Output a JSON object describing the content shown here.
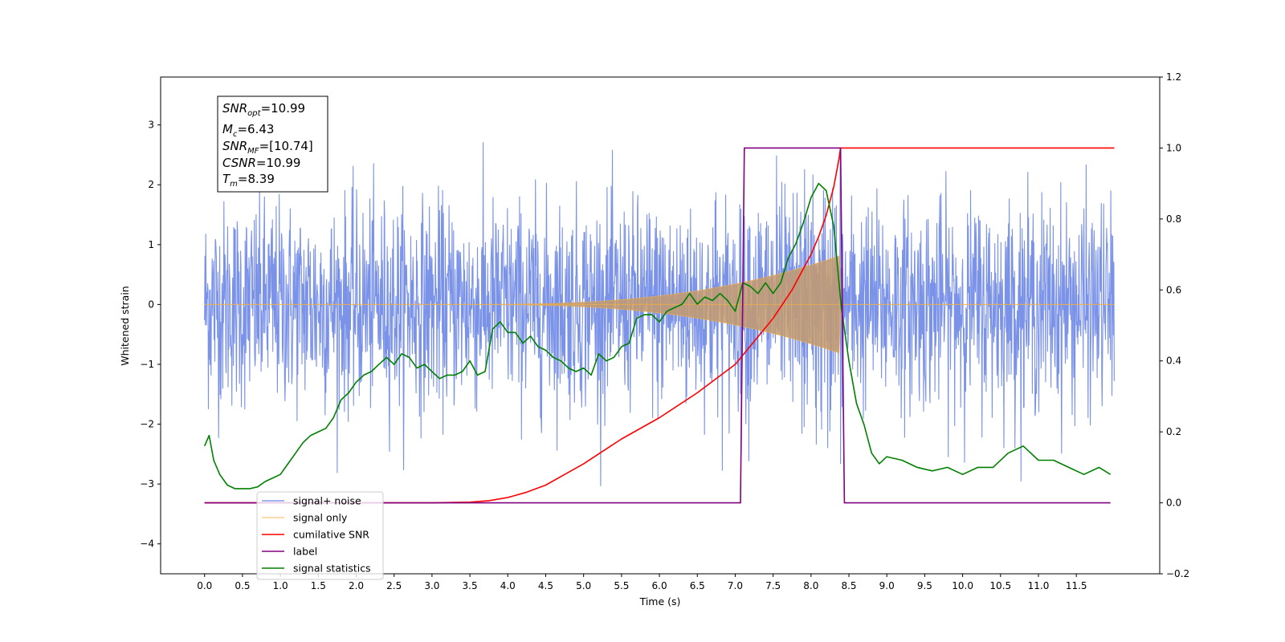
{
  "chart_data": {
    "type": "line",
    "xlabel": "Time (s)",
    "ylabel": "Whitened strain",
    "y2label": "",
    "xlim": [
      -0.58,
      12.6
    ],
    "ylim": [
      -4.5,
      3.8
    ],
    "y2lim": [
      -0.2,
      1.2
    ],
    "x_ticks": [
      "0.0",
      "0.5",
      "1.0",
      "1.5",
      "2.0",
      "2.5",
      "3.0",
      "3.5",
      "4.0",
      "4.5",
      "5.0",
      "5.5",
      "6.0",
      "6.5",
      "7.0",
      "7.5",
      "8.0",
      "8.5",
      "9.0",
      "9.5",
      "10.0",
      "10.5",
      "11.0",
      "11.5"
    ],
    "y_ticks": [
      "3",
      "2",
      "1",
      "0",
      "−1",
      "−2",
      "−3",
      "−4"
    ],
    "y2_ticks": [
      "1.2",
      "1.0",
      "0.8",
      "0.6",
      "0.4",
      "0.2",
      "0.0",
      "−0.2"
    ],
    "grid": false,
    "legend_position": "lower-left",
    "info_box": {
      "snr_opt": {
        "base": "SNR",
        "sub": "opt",
        "value": "=10.99"
      },
      "mc": {
        "base": "M",
        "sub": "c",
        "value": "=6.43"
      },
      "snr_mf": {
        "base": "SNR",
        "sub": "MF",
        "value": "=[10.74]"
      },
      "csnr": {
        "base": "CSNR",
        "value": "=10.99"
      },
      "tm": {
        "base": "T",
        "sub": "m",
        "value": "=8.39"
      }
    },
    "series": [
      {
        "name": "signal+ noise",
        "color": "#6b86e6",
        "axis": "left",
        "x_range": [
          0.0,
          12.0
        ],
        "noise_amplitude": 0.85,
        "envelope": {
          "start": 3.6,
          "merger": 8.39,
          "peak": 0.8
        }
      },
      {
        "name": "signal only",
        "color": "#f5b041",
        "axis": "left",
        "x_range": [
          0.0,
          12.0
        ],
        "envelope": {
          "start": 3.6,
          "merger": 8.39,
          "peak": 0.8
        }
      },
      {
        "name": "cumilative SNR",
        "color": "#ff0000",
        "axis": "right",
        "x": [
          0,
          2.0,
          3.0,
          3.5,
          3.75,
          4.0,
          4.25,
          4.5,
          4.75,
          5.0,
          5.5,
          6.0,
          6.5,
          7.0,
          7.5,
          7.75,
          8.0,
          8.1,
          8.2,
          8.3,
          8.37,
          8.39,
          12.0
        ],
        "values": [
          0.0,
          0.0,
          0.0,
          0.002,
          0.006,
          0.015,
          0.03,
          0.05,
          0.08,
          0.11,
          0.18,
          0.24,
          0.31,
          0.39,
          0.52,
          0.6,
          0.7,
          0.75,
          0.81,
          0.89,
          0.97,
          1.0,
          1.0
        ]
      },
      {
        "name": "label",
        "color": "#800080",
        "axis": "right",
        "x": [
          0.0,
          7.07,
          7.12,
          8.39,
          8.44,
          11.95
        ],
        "values": [
          0.0,
          0.0,
          1.0,
          1.0,
          0.0,
          0.0
        ]
      },
      {
        "name": "signal statistics",
        "color": "#008000",
        "axis": "right",
        "x": [
          0.0,
          0.06,
          0.12,
          0.2,
          0.3,
          0.4,
          0.5,
          0.6,
          0.7,
          0.8,
          0.9,
          1.0,
          1.1,
          1.2,
          1.3,
          1.4,
          1.5,
          1.6,
          1.7,
          1.8,
          1.9,
          2.0,
          2.1,
          2.2,
          2.3,
          2.4,
          2.5,
          2.6,
          2.7,
          2.8,
          2.9,
          3.0,
          3.1,
          3.2,
          3.3,
          3.4,
          3.5,
          3.6,
          3.7,
          3.8,
          3.9,
          4.0,
          4.1,
          4.2,
          4.3,
          4.4,
          4.5,
          4.6,
          4.7,
          4.8,
          4.9,
          5.0,
          5.1,
          5.2,
          5.3,
          5.4,
          5.5,
          5.6,
          5.7,
          5.8,
          5.9,
          6.0,
          6.1,
          6.2,
          6.3,
          6.4,
          6.5,
          6.6,
          6.7,
          6.8,
          6.9,
          7.0,
          7.1,
          7.2,
          7.3,
          7.4,
          7.5,
          7.6,
          7.7,
          7.8,
          7.9,
          8.0,
          8.1,
          8.2,
          8.3,
          8.4,
          8.5,
          8.6,
          8.7,
          8.8,
          8.9,
          9.0,
          9.2,
          9.4,
          9.6,
          9.8,
          10.0,
          10.2,
          10.4,
          10.6,
          10.8,
          11.0,
          11.2,
          11.4,
          11.6,
          11.8,
          11.95
        ],
        "values": [
          0.16,
          0.19,
          0.12,
          0.08,
          0.05,
          0.04,
          0.04,
          0.04,
          0.045,
          0.06,
          0.07,
          0.08,
          0.11,
          0.14,
          0.17,
          0.19,
          0.2,
          0.21,
          0.24,
          0.29,
          0.31,
          0.34,
          0.36,
          0.37,
          0.39,
          0.41,
          0.39,
          0.42,
          0.41,
          0.38,
          0.39,
          0.37,
          0.35,
          0.36,
          0.36,
          0.37,
          0.4,
          0.36,
          0.37,
          0.49,
          0.51,
          0.48,
          0.48,
          0.45,
          0.47,
          0.44,
          0.43,
          0.41,
          0.4,
          0.38,
          0.37,
          0.38,
          0.36,
          0.42,
          0.4,
          0.41,
          0.44,
          0.45,
          0.52,
          0.53,
          0.53,
          0.51,
          0.54,
          0.55,
          0.56,
          0.59,
          0.56,
          0.58,
          0.57,
          0.59,
          0.57,
          0.54,
          0.62,
          0.61,
          0.59,
          0.62,
          0.59,
          0.62,
          0.69,
          0.73,
          0.79,
          0.86,
          0.9,
          0.88,
          0.78,
          0.55,
          0.4,
          0.28,
          0.22,
          0.14,
          0.11,
          0.13,
          0.12,
          0.1,
          0.09,
          0.1,
          0.08,
          0.1,
          0.1,
          0.14,
          0.16,
          0.12,
          0.12,
          0.1,
          0.08,
          0.1,
          0.08
        ]
      }
    ]
  }
}
